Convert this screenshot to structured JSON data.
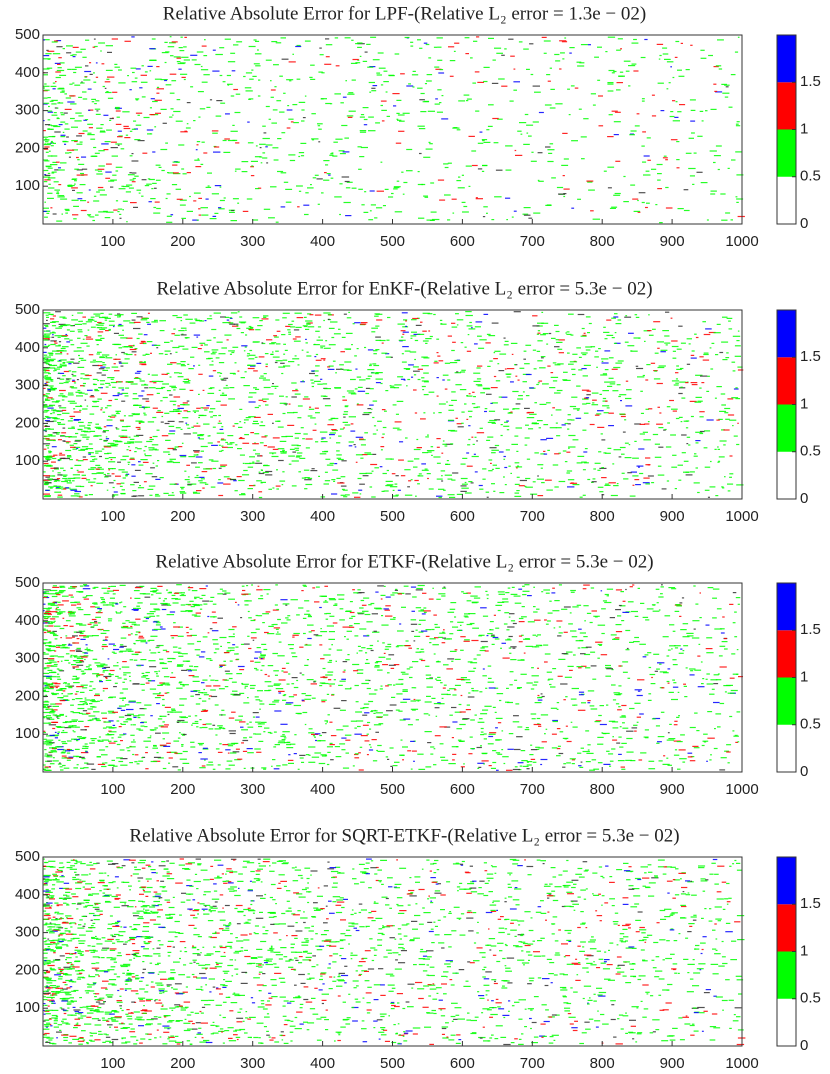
{
  "chart_data": [
    {
      "type": "heatmap",
      "title": "Relative Absolute Error for LPF-(Relative L₂ error = 1.3e − 02)",
      "xlim": [
        0,
        1000
      ],
      "xticks": [
        100,
        200,
        300,
        400,
        500,
        600,
        700,
        800,
        900,
        1000
      ],
      "ylim": [
        0,
        500
      ],
      "yticks": [
        100,
        200,
        300,
        400,
        500
      ],
      "colorbar": {
        "colors": [
          "#ffffff",
          "#00ff00",
          "#ff0000",
          "#0000ff"
        ],
        "clim": [
          0,
          2
        ],
        "ticks": [
          0,
          0.5,
          1,
          1.5
        ]
      }
    },
    {
      "type": "heatmap",
      "title": "Relative Absolute Error for EnKF-(Relative L₂ error = 5.3e − 02)",
      "xlim": [
        0,
        1000
      ],
      "xticks": [
        100,
        200,
        300,
        400,
        500,
        600,
        700,
        800,
        900,
        1000
      ],
      "ylim": [
        0,
        500
      ],
      "yticks": [
        100,
        200,
        300,
        400,
        500
      ],
      "colorbar": {
        "colors": [
          "#ffffff",
          "#00ff00",
          "#ff0000",
          "#0000ff"
        ],
        "clim": [
          0,
          2
        ],
        "ticks": [
          0,
          0.5,
          1,
          1.5
        ]
      }
    },
    {
      "type": "heatmap",
      "title": "Relative Absolute Error for ETKF-(Relative L₂ error = 5.3e − 02)",
      "xlim": [
        0,
        1000
      ],
      "xticks": [
        100,
        200,
        300,
        400,
        500,
        600,
        700,
        800,
        900,
        1000
      ],
      "ylim": [
        0,
        500
      ],
      "yticks": [
        100,
        200,
        300,
        400,
        500
      ],
      "colorbar": {
        "colors": [
          "#ffffff",
          "#00ff00",
          "#ff0000",
          "#0000ff"
        ],
        "clim": [
          0,
          2
        ],
        "ticks": [
          0,
          0.5,
          1,
          1.5
        ]
      }
    },
    {
      "type": "heatmap",
      "title": "Relative Absolute Error for SQRT-ETKF-(Relative L₂ error = 5.3e − 02)",
      "xlim": [
        0,
        1000
      ],
      "xticks": [
        100,
        200,
        300,
        400,
        500,
        600,
        700,
        800,
        900,
        1000
      ],
      "ylim": [
        0,
        500
      ],
      "yticks": [
        100,
        200,
        300,
        400,
        500
      ],
      "colorbar": {
        "colors": [
          "#ffffff",
          "#00ff00",
          "#ff0000",
          "#0000ff"
        ],
        "clim": [
          0,
          2
        ],
        "ticks": [
          0,
          0.5,
          1,
          1.5
        ]
      }
    }
  ]
}
